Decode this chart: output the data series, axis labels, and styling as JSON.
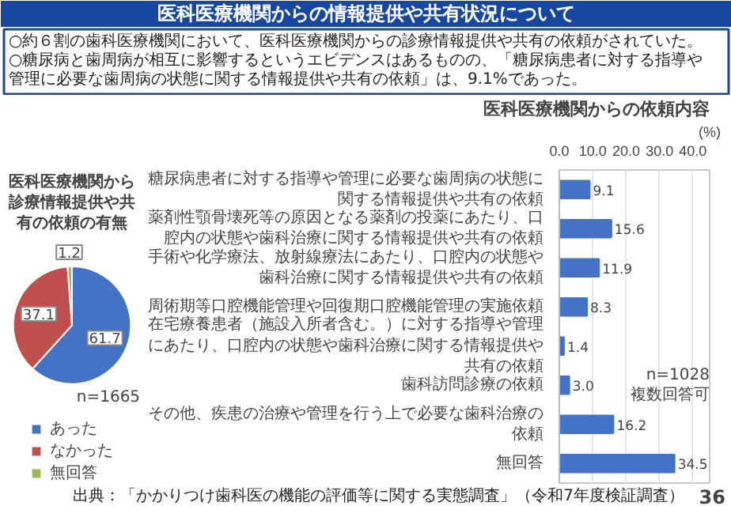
{
  "chart_data": [
    {
      "type": "other",
      "title": "医科医療機関からの情報提供や共有状況について",
      "annotations": [
        "○約６割の歯科医療機関において、医科医療機関からの診療情報提供や共有の依頼がされていた。",
        "○糖尿病と歯周病が相互に影響するというエビデンスはあるものの、「糖尿病患者に対する指導や管理に必要な歯周病の状態に関する情報提供や共有の依頼」は、9.1%であった。",
        "出典：「かかりつけ歯科医の機能の評価等に関する実態調査」（令和7年度検証調査）",
        "36"
      ]
    },
    {
      "type": "pie",
      "title": "医科医療機関から診療情報提供や共有の依頼の有無",
      "categories": [
        "あった",
        "なかった",
        "無回答"
      ],
      "values": [
        61.7,
        37.1,
        1.2
      ],
      "colors": [
        "#4472c4",
        "#c0504d",
        "#9bbb59"
      ],
      "data_labels": true,
      "legend": "bottom",
      "annotations": [
        "n=1665"
      ]
    },
    {
      "type": "bar",
      "orientation": "horizontal",
      "title": "医科医療機関からの依頼内容",
      "xlabel": "(%)",
      "categories": [
        "糖尿病患者に対する指導や管理に必要な歯周病の状態に関する情報提供や共有の依頼",
        "薬剤性顎骨壊死等の原因となる薬剤の投薬にあたり、口腔内の状態や歯科治療に関する情報提供や共有の依頼",
        "手術や化学療法、放射線療法にあたり、口腔内の状態や歯科治療に関する情報提供や共有の依頼",
        "周術期等口腔機能管理や回復期口腔機能管理の実施依頼",
        "在宅療養患者（施設入所者含む。）に対する指導や管理にあたり、口腔内の状態や歯科治療に関する情報提供や共有の依頼",
        "歯科訪問診療の依頼",
        "その他、疾患の治療や管理を行う上で必要な歯科治療の依頼",
        "無回答"
      ],
      "values": [
        9.1,
        15.6,
        11.9,
        8.3,
        1.4,
        3.0,
        16.2,
        34.5
      ],
      "color": "#4472c4",
      "value_labels": [
        "9.1",
        "15.6",
        "11.9",
        "8.3",
        "1.4",
        "3.0",
        "16.2",
        "34.5"
      ],
      "xlim": [
        0,
        45
      ],
      "xticks": [
        {
          "value": 0,
          "label": "0.0"
        },
        {
          "value": 10,
          "label": "10.0"
        },
        {
          "value": 20,
          "label": "20.0"
        },
        {
          "value": 30,
          "label": "30.0"
        },
        {
          "value": 40,
          "label": "40.0"
        }
      ],
      "grid": "x",
      "annotations": [
        "n=1028",
        "複数回答可"
      ]
    }
  ]
}
